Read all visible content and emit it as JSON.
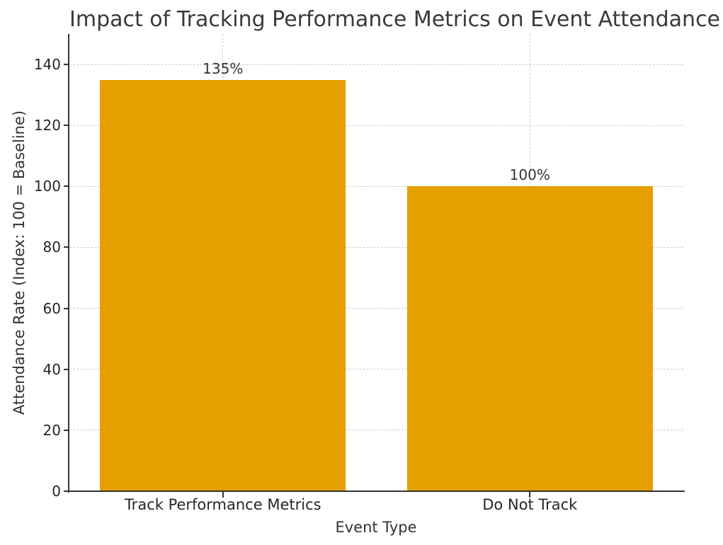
{
  "chart_data": {
    "type": "bar",
    "title": "Impact of Tracking Performance Metrics on Event Attendance",
    "xlabel": "Event Type",
    "ylabel": "Attendance Rate (Index: 100 = Baseline)",
    "categories": [
      "Track Performance Metrics",
      "Do Not Track"
    ],
    "values": [
      135,
      100
    ],
    "value_labels": [
      "135%",
      "100%"
    ],
    "yticks": [
      0,
      20,
      40,
      60,
      80,
      100,
      120,
      140
    ],
    "ylim": [
      0,
      150
    ],
    "bar_color": "#E69F00",
    "grid": true,
    "grid_color": "#cccccc",
    "grid_style": "dashed",
    "spine_color": "#333333",
    "text_color": "#333333",
    "background": "#ffffff",
    "legend": "none"
  }
}
